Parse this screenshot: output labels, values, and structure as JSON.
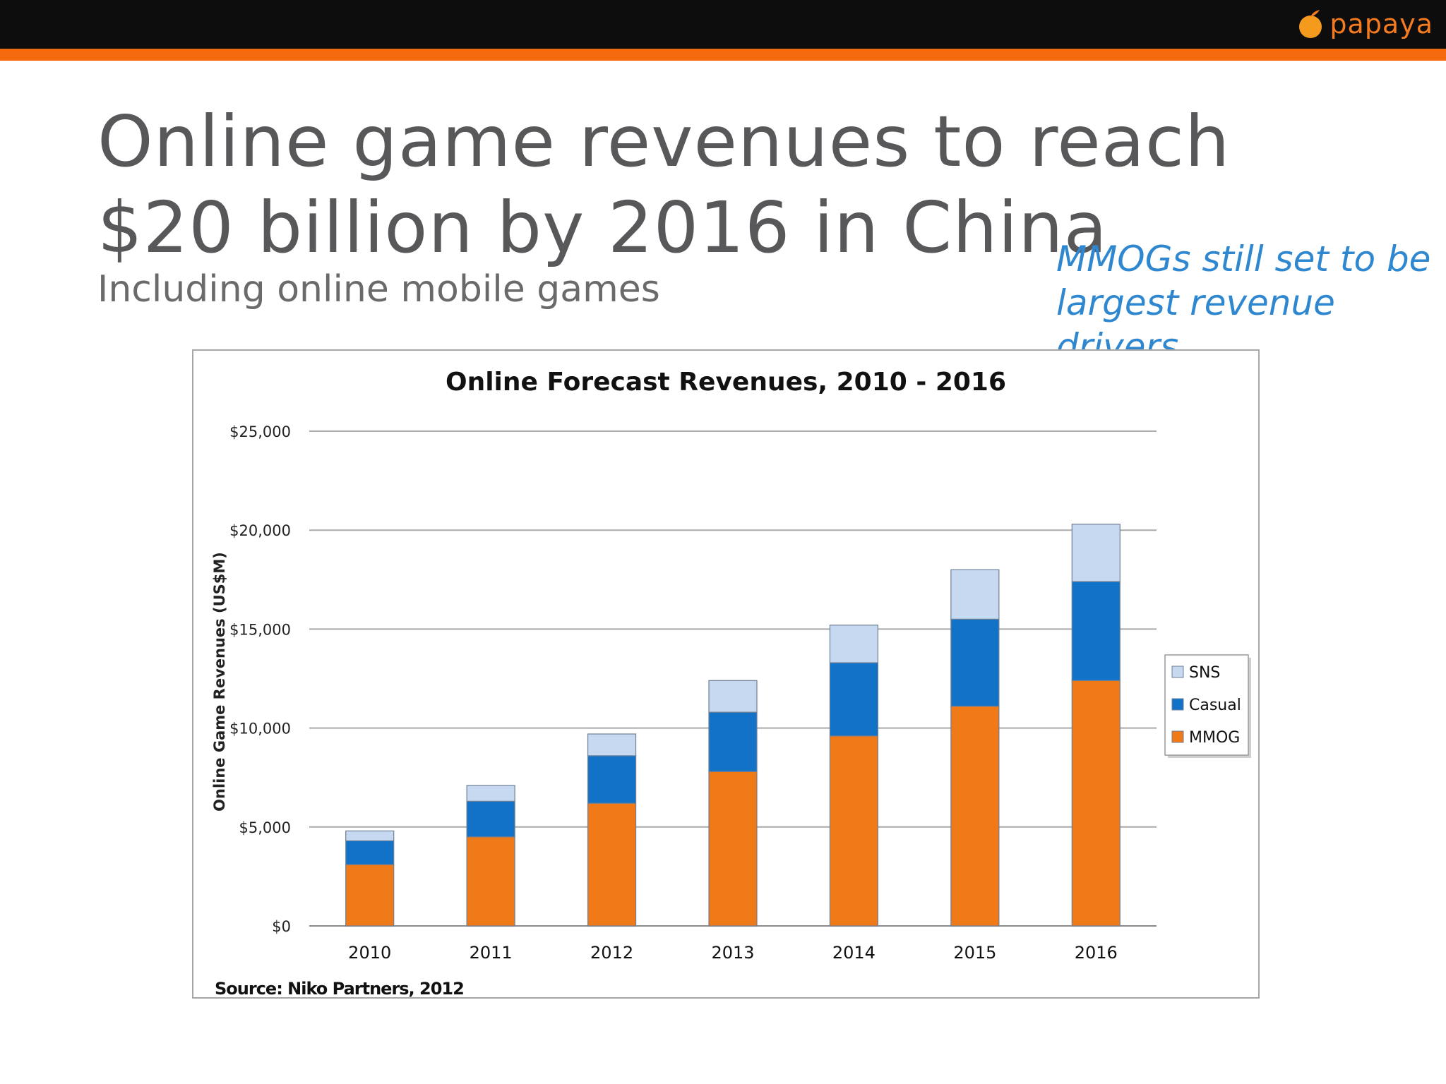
{
  "brand": {
    "name": "papaya"
  },
  "slide": {
    "title": "Online game revenues to reach $20 billion by 2016 in China",
    "subtitle": "Including online mobile games",
    "callout": "MMOGs still set to be largest revenue drivers"
  },
  "colors": {
    "accent": "#f36a0f",
    "sns": "#c6d9f0",
    "casual": "#1272c7",
    "mmog": "#ef7a17",
    "callout": "#2f88cf"
  },
  "chart_data": {
    "type": "bar",
    "stacked": true,
    "title": "Online Forecast Revenues, 2010  - 2016",
    "ylabel": "Online Game Revenues (US$M)",
    "xlabel": "",
    "ylim": [
      0,
      25000
    ],
    "yticks": [
      0,
      5000,
      10000,
      15000,
      20000,
      25000
    ],
    "ytick_labels": [
      "$0",
      "$5,000",
      "$10,000",
      "$15,000",
      "$20,000",
      "$25,000"
    ],
    "categories": [
      "2010",
      "2011",
      "2012",
      "2013",
      "2014",
      "2015",
      "2016"
    ],
    "series": [
      {
        "name": "MMOG",
        "color": "#ef7a17",
        "values": [
          3100,
          4500,
          6200,
          7800,
          9600,
          11100,
          12400
        ]
      },
      {
        "name": "Casual",
        "color": "#1272c7",
        "values": [
          1200,
          1800,
          2400,
          3000,
          3700,
          4400,
          5000
        ]
      },
      {
        "name": "SNS",
        "color": "#c6d9f0",
        "values": [
          500,
          800,
          1100,
          1600,
          1900,
          2500,
          2900
        ]
      }
    ],
    "legend": [
      "SNS",
      "Casual",
      "MMOG"
    ],
    "legend_position": "right",
    "grid": true,
    "source": "Source: Niko Partners, 2012"
  }
}
